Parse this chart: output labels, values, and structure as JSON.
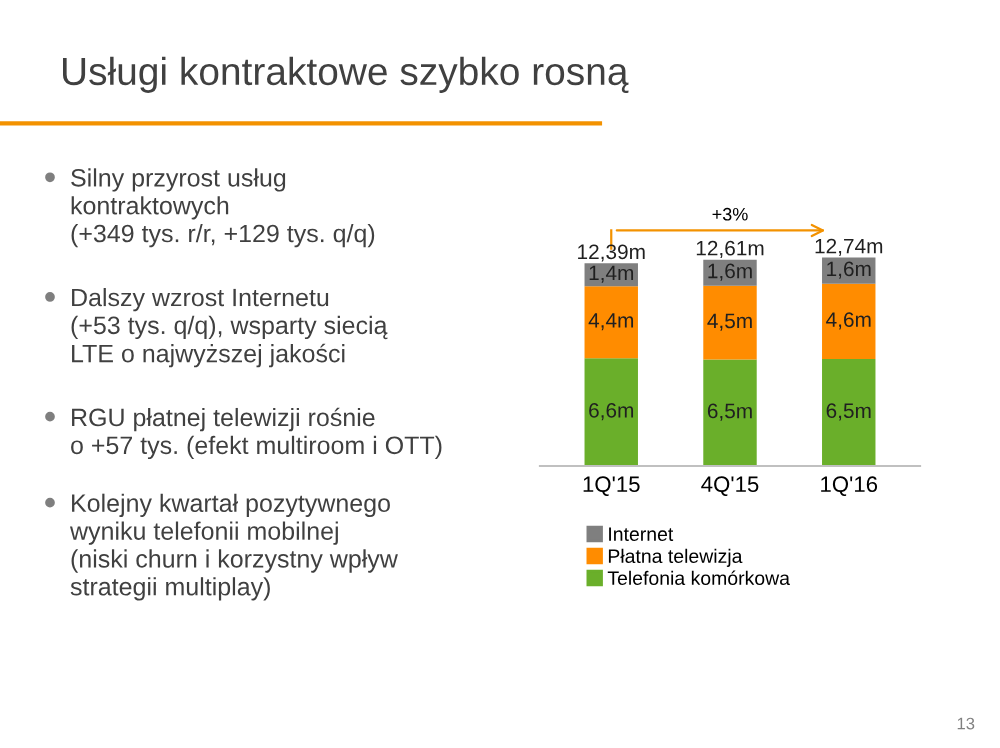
{
  "chart_data": {
    "type": "bar",
    "title": "Usługi kontraktowe szybko rosną",
    "stacked": true,
    "categories": [
      "1Q'15",
      "4Q'15",
      "1Q'16"
    ],
    "series": [
      {
        "name": "Telefonia komórkowa",
        "color": "#6aaf2a",
        "values": [
          6.59,
          6.51,
          6.54
        ],
        "value_labels": [
          "6,6m",
          "6,5m",
          "6,5m"
        ]
      },
      {
        "name": "Płatna telewizja",
        "color": "#ff8c00",
        "values": [
          4.4,
          4.5,
          4.6
        ],
        "value_labels": [
          "4,4m",
          "4,5m",
          "4,6m"
        ]
      },
      {
        "name": "Internet",
        "color": "#7f7f7f",
        "values": [
          1.4,
          1.6,
          1.6
        ],
        "value_labels": [
          "1,4m",
          "1,6m",
          "1,6m"
        ]
      }
    ],
    "totals": [
      "12,39m",
      "12,61m",
      "12,74m"
    ],
    "legend": "bottom",
    "grid": false,
    "annotations": [
      "+3%",
      "Silny przyrost usług\nkontraktowych\n(+349 tys. r/r, +129 tys. q/q)",
      "Dalszy wzrost Internetu\n(+53 tys. q/q), wsparty siecią\nLTE o najwyższej jakości",
      "RGU płatnej telewizji rośnie\no +57 tys. (efekt multiroom i OTT)",
      "Kolejny kwartał pozytywnego\nwyniku telefonii mobilnej\n(niski churn i korzystny wpływ\nstrategii multiplay)",
      "13"
    ]
  }
}
